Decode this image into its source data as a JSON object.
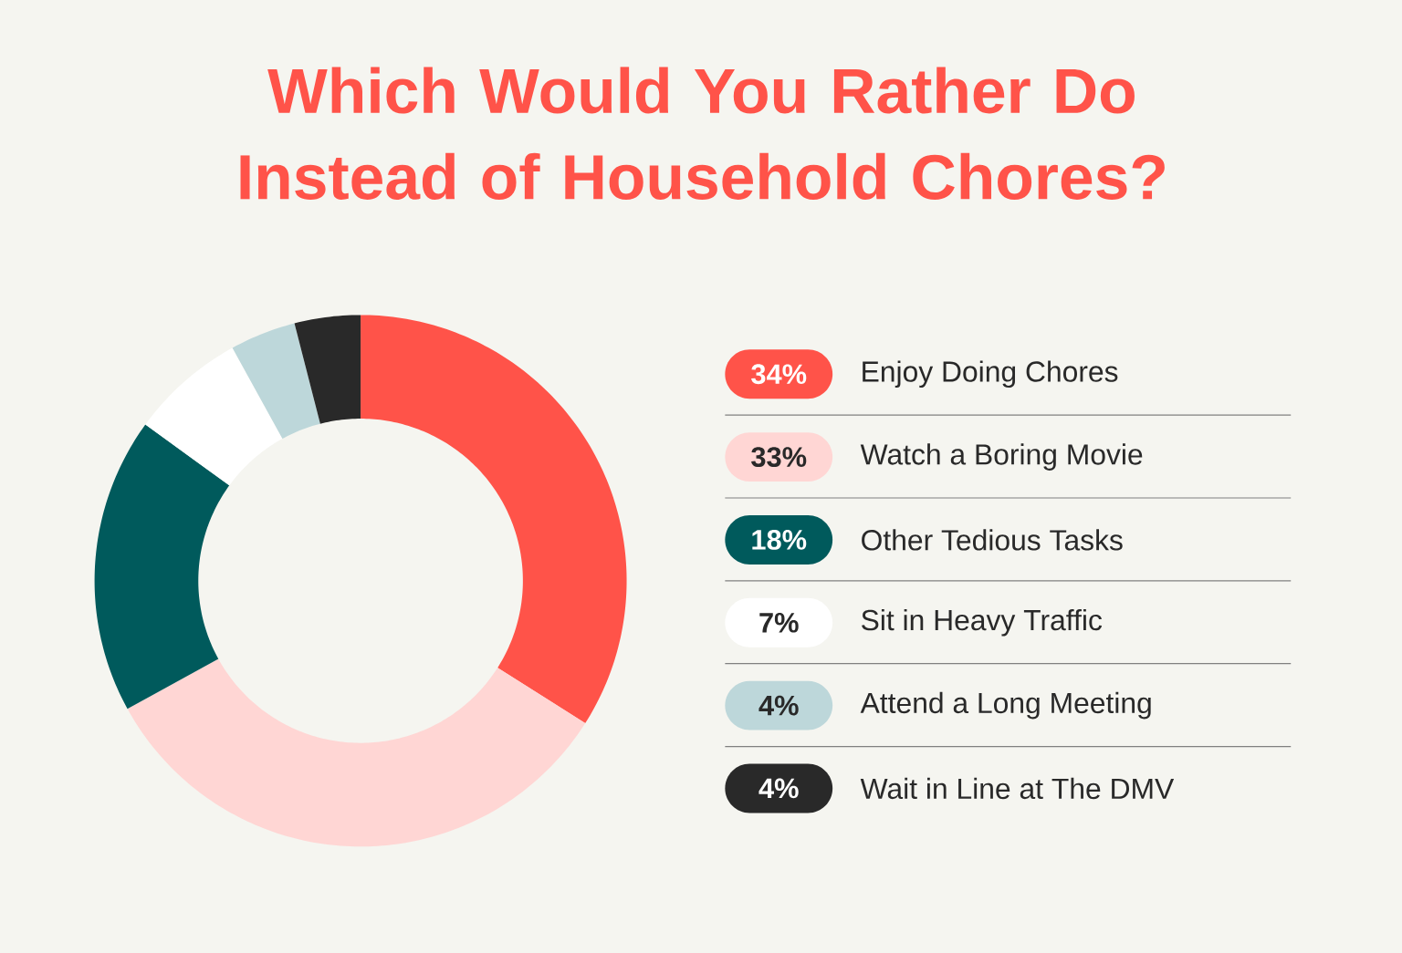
{
  "chart_data": {
    "type": "donut",
    "title": "Which Would You Rather Do Instead of Household Chores?",
    "categories": [
      "Enjoy Doing Chores",
      "Watch a Boring Movie",
      "Other Tedious Tasks",
      "Sit in Heavy Traffic",
      "Attend a Long Meeting",
      "Wait in Line at The DMV"
    ],
    "values": [
      34,
      33,
      18,
      7,
      4,
      4
    ],
    "value_labels": [
      "34%",
      "33%",
      "18%",
      "7%",
      "4%",
      "4%"
    ],
    "colors": [
      "#ff5349",
      "#ffd6d4",
      "#005a5c",
      "#ffffff",
      "#bdd7da",
      "#292929"
    ],
    "legend": "right"
  }
}
